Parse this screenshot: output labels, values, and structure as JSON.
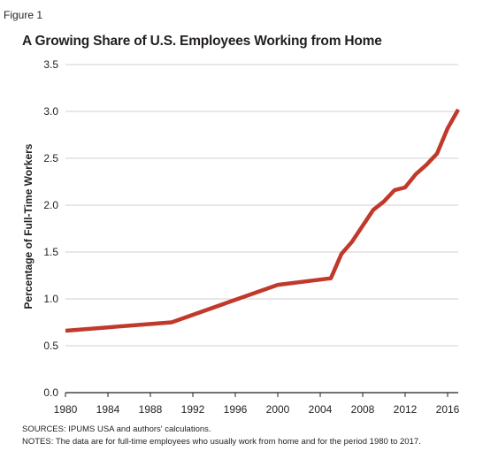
{
  "figure_label": "Figure 1",
  "sources": "SOURCES: IPUMS USA and authors' calculations.",
  "notes": "NOTES: The data are for full-time employees who usually work from home and for the period 1980 to 2017.",
  "chart_data": {
    "type": "line",
    "title": "A Growing Share of U.S. Employees Working from Home",
    "xlabel": "",
    "ylabel": "Percentage of Full-Time Workers",
    "xlim": [
      1980,
      2017
    ],
    "ylim": [
      0,
      3.5
    ],
    "xticks": [
      1980,
      1984,
      1988,
      1992,
      1996,
      2000,
      2004,
      2008,
      2012,
      2016
    ],
    "yticks": [
      0.0,
      0.5,
      1.0,
      1.5,
      2.0,
      2.5,
      3.0,
      3.5
    ],
    "ytick_labels": [
      "0.0",
      "0.5",
      "1.0",
      "1.5",
      "2.0",
      "2.5",
      "3.0",
      "3.5"
    ],
    "grid": "horizontal",
    "color": "#c0392b",
    "series": [
      {
        "x": [
          1980,
          1990,
          2000,
          2005,
          2006,
          2007,
          2008,
          2009,
          2010,
          2011,
          2012,
          2013,
          2014,
          2015,
          2016,
          2017
        ],
        "y": [
          0.66,
          0.75,
          1.15,
          1.22,
          1.48,
          1.61,
          1.78,
          1.95,
          2.04,
          2.16,
          2.19,
          2.33,
          2.43,
          2.55,
          2.82,
          3.02
        ]
      }
    ]
  }
}
